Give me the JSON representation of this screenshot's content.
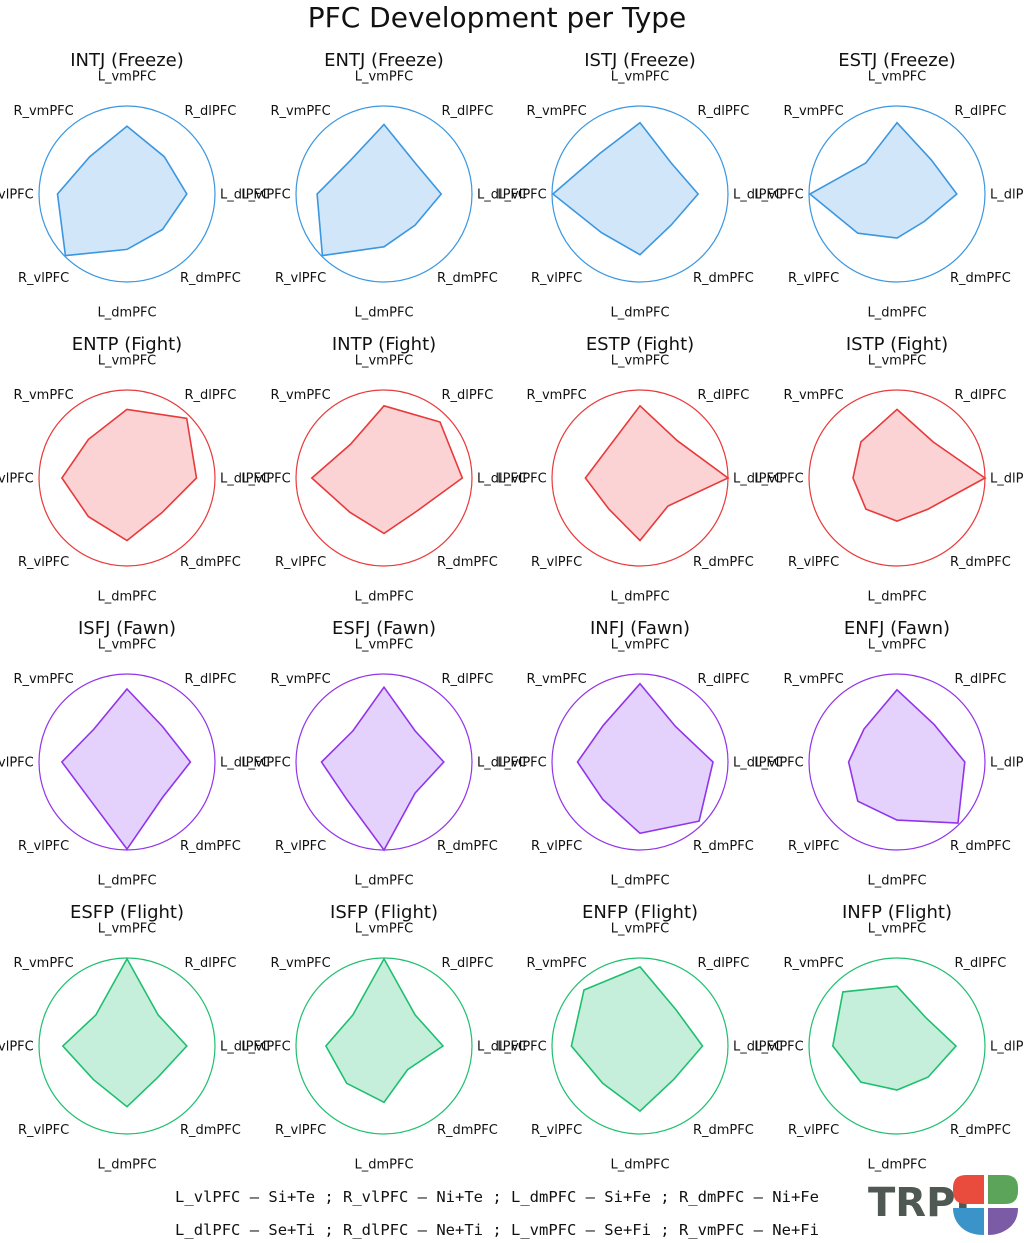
{
  "title": "PFC Development per Type",
  "axes": [
    "L_vmPFC",
    "R_dlPFC",
    "L_dlPFC",
    "R_dmPFC",
    "L_dmPFC",
    "R_vlPFC",
    "L_vlPFC",
    "R_vmPFC"
  ],
  "chart_data": {
    "type": "radar",
    "title": "PFC Development per Type",
    "axes": [
      "L_vmPFC",
      "R_dlPFC",
      "L_dlPFC",
      "R_dmPFC",
      "L_dmPFC",
      "R_vlPFC",
      "L_vlPFC",
      "R_vmPFC"
    ],
    "rlim": [
      0,
      1
    ],
    "grid": false,
    "panels": [
      {
        "title": "INTJ (Freeze)",
        "color": "#3a97e0",
        "fill": "#d2e6fa",
        "values": [
          0.77,
          0.6,
          0.68,
          0.57,
          0.63,
          0.99,
          0.79,
          0.6
        ]
      },
      {
        "title": "ENTJ (Freeze)",
        "color": "#3a97e0",
        "fill": "#d2e6fa",
        "values": [
          0.79,
          0.5,
          0.65,
          0.5,
          0.6,
          0.99,
          0.76,
          0.54
        ]
      },
      {
        "title": "ISTJ (Freeze)",
        "color": "#3a97e0",
        "fill": "#d2e6fa",
        "values": [
          0.81,
          0.5,
          0.66,
          0.5,
          0.69,
          0.62,
          0.99,
          0.65
        ]
      },
      {
        "title": "ESTJ (Freeze)",
        "color": "#3a97e0",
        "fill": "#d2e6fa",
        "values": [
          0.81,
          0.55,
          0.68,
          0.44,
          0.5,
          0.63,
          0.99,
          0.5
        ]
      },
      {
        "title": "ENTP (Fight)",
        "color": "#e83a3a",
        "fill": "#fbd3d4",
        "values": [
          0.78,
          0.96,
          0.79,
          0.56,
          0.71,
          0.62,
          0.74,
          0.62
        ]
      },
      {
        "title": "INTP (Fight)",
        "color": "#e83a3a",
        "fill": "#fbd3d4",
        "values": [
          0.82,
          0.9,
          0.89,
          0.53,
          0.63,
          0.55,
          0.82,
          0.54
        ]
      },
      {
        "title": "ESTP (Fight)",
        "color": "#e83a3a",
        "fill": "#fbd3d4",
        "values": [
          0.82,
          0.6,
          1.0,
          0.45,
          0.71,
          0.5,
          0.62,
          0.5
        ]
      },
      {
        "title": "ISTP (Fight)",
        "color": "#e83a3a",
        "fill": "#fbd3d4",
        "values": [
          0.78,
          0.58,
          1.0,
          0.5,
          0.49,
          0.5,
          0.5,
          0.58
        ]
      },
      {
        "title": "ISFJ (Fawn)",
        "color": "#9234ea",
        "fill": "#e4d2fc",
        "values": [
          0.83,
          0.57,
          0.72,
          0.57,
          0.99,
          0.6,
          0.74,
          0.53
        ]
      },
      {
        "title": "ESFJ (Fawn)",
        "color": "#9234ea",
        "fill": "#e4d2fc",
        "values": [
          0.85,
          0.5,
          0.68,
          0.5,
          1.0,
          0.6,
          0.71,
          0.5
        ]
      },
      {
        "title": "INFJ (Fawn)",
        "color": "#9234ea",
        "fill": "#e4d2fc",
        "values": [
          0.89,
          0.57,
          0.83,
          0.95,
          0.81,
          0.6,
          0.71,
          0.59
        ]
      },
      {
        "title": "ENFJ (Fawn)",
        "color": "#9234ea",
        "fill": "#e4d2fc",
        "values": [
          0.82,
          0.6,
          0.77,
          0.98,
          0.66,
          0.63,
          0.55,
          0.53
        ]
      },
      {
        "title": "ESFP (Flight)",
        "color": "#1fbf70",
        "fill": "#c6efdb",
        "values": [
          0.99,
          0.5,
          0.68,
          0.5,
          0.69,
          0.54,
          0.73,
          0.5
        ]
      },
      {
        "title": "ISFP (Flight)",
        "color": "#1fbf70",
        "fill": "#c6efdb",
        "values": [
          0.99,
          0.5,
          0.67,
          0.38,
          0.64,
          0.6,
          0.66,
          0.5
        ]
      },
      {
        "title": "ENFP (Flight)",
        "color": "#1fbf70",
        "fill": "#c6efdb",
        "values": [
          0.9,
          0.58,
          0.71,
          0.54,
          0.74,
          0.6,
          0.78,
          0.9
        ]
      },
      {
        "title": "INFP (Flight)",
        "color": "#1fbf70",
        "fill": "#c6efdb",
        "values": [
          0.68,
          0.46,
          0.67,
          0.5,
          0.5,
          0.58,
          0.73,
          0.87
        ]
      }
    ]
  },
  "legend": {
    "line1": "L_vlPFC – Si+Te ; R_vlPFC – Ni+Te ; L_dmPFC – Si+Fe ; R_dmPFC – Ni+Fe",
    "line2": "L_dlPFC – Se+Ti ; R_dlPFC – Ne+Ti ; L_vmPFC – Se+Fi ; R_vmPFC – Ne+Fi"
  },
  "logo": {
    "text": "TRPI",
    "colors": [
      "#e94b3c",
      "#5ca45a",
      "#3a93c9",
      "#7b5ba6"
    ]
  }
}
